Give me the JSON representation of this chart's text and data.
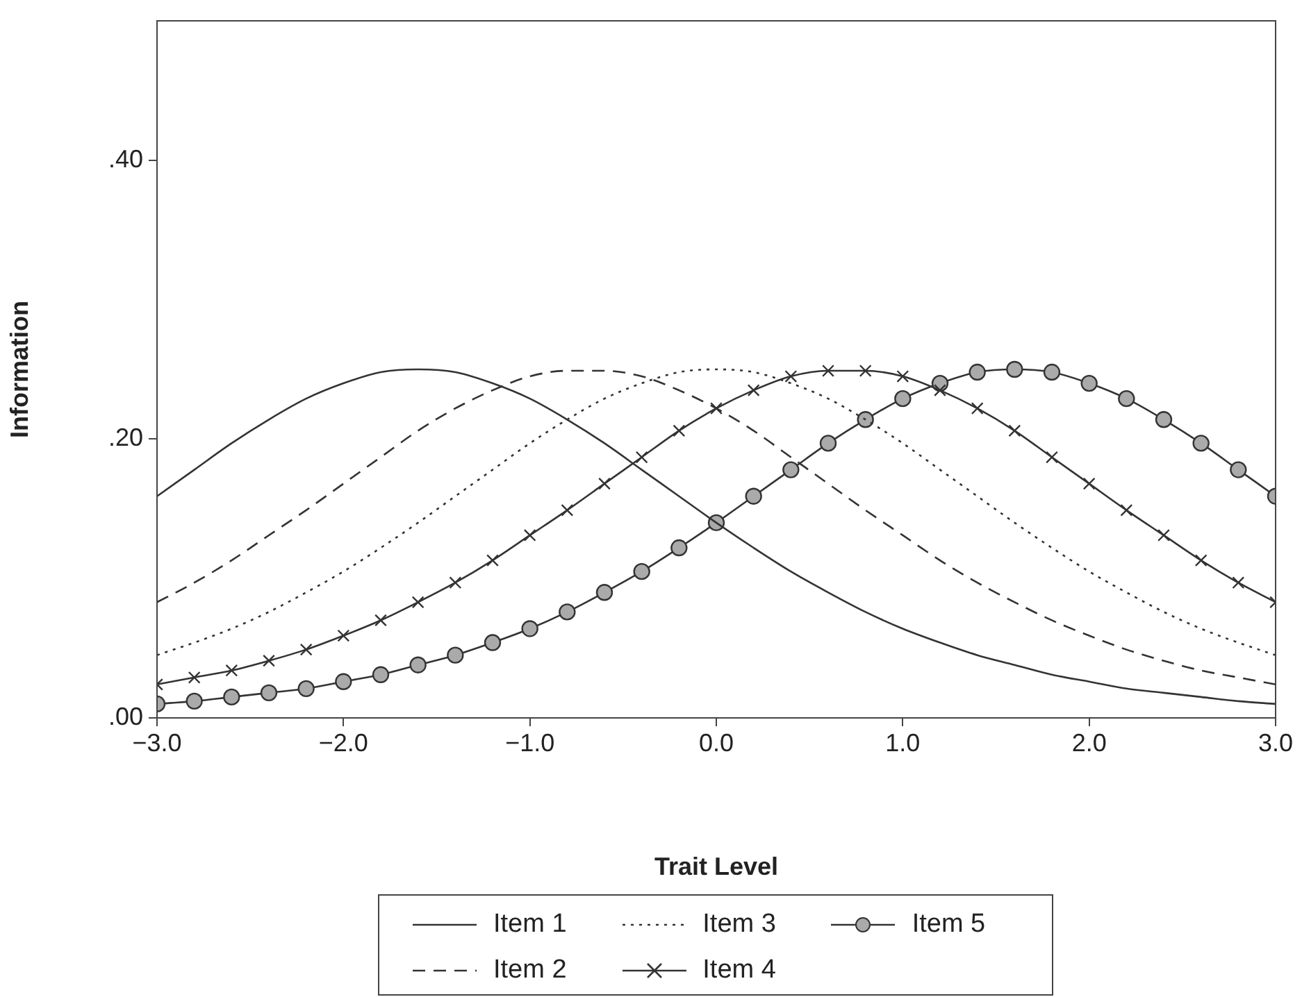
{
  "chart_data": {
    "type": "line",
    "xlabel": "Trait Level",
    "ylabel": "Information",
    "x": [
      -3,
      -2.8,
      -2.6,
      -2.4,
      -2.2,
      -2,
      -1.8,
      -1.6,
      -1.4,
      -1.2,
      -1,
      -0.8,
      -0.6,
      -0.4,
      -0.2,
      0,
      0.2,
      0.4,
      0.6,
      0.8,
      1,
      1.2,
      1.4,
      1.6,
      1.8,
      2,
      2.2,
      2.4,
      2.6,
      2.8,
      3
    ],
    "series": [
      {
        "name": "Item 1",
        "color": "#333333",
        "line_style": "solid",
        "marker": "none",
        "values": [
          0.159,
          0.178,
          0.197,
          0.214,
          0.229,
          0.24,
          0.248,
          0.25,
          0.248,
          0.24,
          0.229,
          0.214,
          0.197,
          0.178,
          0.159,
          0.14,
          0.122,
          0.105,
          0.09,
          0.076,
          0.064,
          0.054,
          0.045,
          0.038,
          0.031,
          0.026,
          0.021,
          0.018,
          0.015,
          0.012,
          0.01
        ]
      },
      {
        "name": "Item 2",
        "color": "#333333",
        "line_style": "dashed",
        "marker": "none",
        "values": [
          0.083,
          0.097,
          0.113,
          0.131,
          0.149,
          0.168,
          0.187,
          0.206,
          0.222,
          0.235,
          0.245,
          0.249,
          0.249,
          0.245,
          0.235,
          0.222,
          0.206,
          0.187,
          0.168,
          0.149,
          0.131,
          0.113,
          0.097,
          0.083,
          0.07,
          0.059,
          0.049,
          0.041,
          0.034,
          0.029,
          0.024
        ]
      },
      {
        "name": "Item 3",
        "color": "#333333",
        "line_style": "dotted",
        "marker": "none",
        "values": [
          0.045,
          0.054,
          0.064,
          0.076,
          0.09,
          0.105,
          0.122,
          0.14,
          0.159,
          0.178,
          0.197,
          0.214,
          0.229,
          0.24,
          0.248,
          0.25,
          0.248,
          0.24,
          0.229,
          0.214,
          0.197,
          0.178,
          0.159,
          0.14,
          0.122,
          0.105,
          0.09,
          0.076,
          0.064,
          0.054,
          0.045
        ]
      },
      {
        "name": "Item 4",
        "color": "#333333",
        "line_style": "solid",
        "marker": "cross",
        "values": [
          0.024,
          0.029,
          0.034,
          0.041,
          0.049,
          0.059,
          0.07,
          0.083,
          0.097,
          0.113,
          0.131,
          0.149,
          0.168,
          0.187,
          0.206,
          0.222,
          0.235,
          0.245,
          0.249,
          0.249,
          0.245,
          0.235,
          0.222,
          0.206,
          0.187,
          0.168,
          0.149,
          0.131,
          0.113,
          0.097,
          0.083
        ]
      },
      {
        "name": "Item 5",
        "color": "#333333",
        "line_style": "solid",
        "marker": "circle",
        "values": [
          0.01,
          0.012,
          0.015,
          0.018,
          0.021,
          0.026,
          0.031,
          0.038,
          0.045,
          0.054,
          0.064,
          0.076,
          0.09,
          0.105,
          0.122,
          0.14,
          0.159,
          0.178,
          0.197,
          0.214,
          0.229,
          0.24,
          0.248,
          0.25,
          0.248,
          0.24,
          0.229,
          0.214,
          0.197,
          0.178,
          0.159
        ]
      }
    ],
    "xlim": [
      -3,
      3
    ],
    "xticks": [
      {
        "value": -3,
        "label": "−3.0"
      },
      {
        "value": -2,
        "label": "−2.0"
      },
      {
        "value": -1,
        "label": "−1.0"
      },
      {
        "value": 0,
        "label": "0.0"
      },
      {
        "value": 1,
        "label": "1.0"
      },
      {
        "value": 2,
        "label": "2.0"
      },
      {
        "value": 3,
        "label": "3.0"
      }
    ],
    "ylim": [
      0,
      0.5
    ],
    "yticks": [
      {
        "value": 0,
        "label": ".00"
      },
      {
        "value": 0.2,
        "label": ".20"
      },
      {
        "value": 0.4,
        "label": ".40"
      }
    ],
    "grid": false,
    "legend": "bottom"
  }
}
